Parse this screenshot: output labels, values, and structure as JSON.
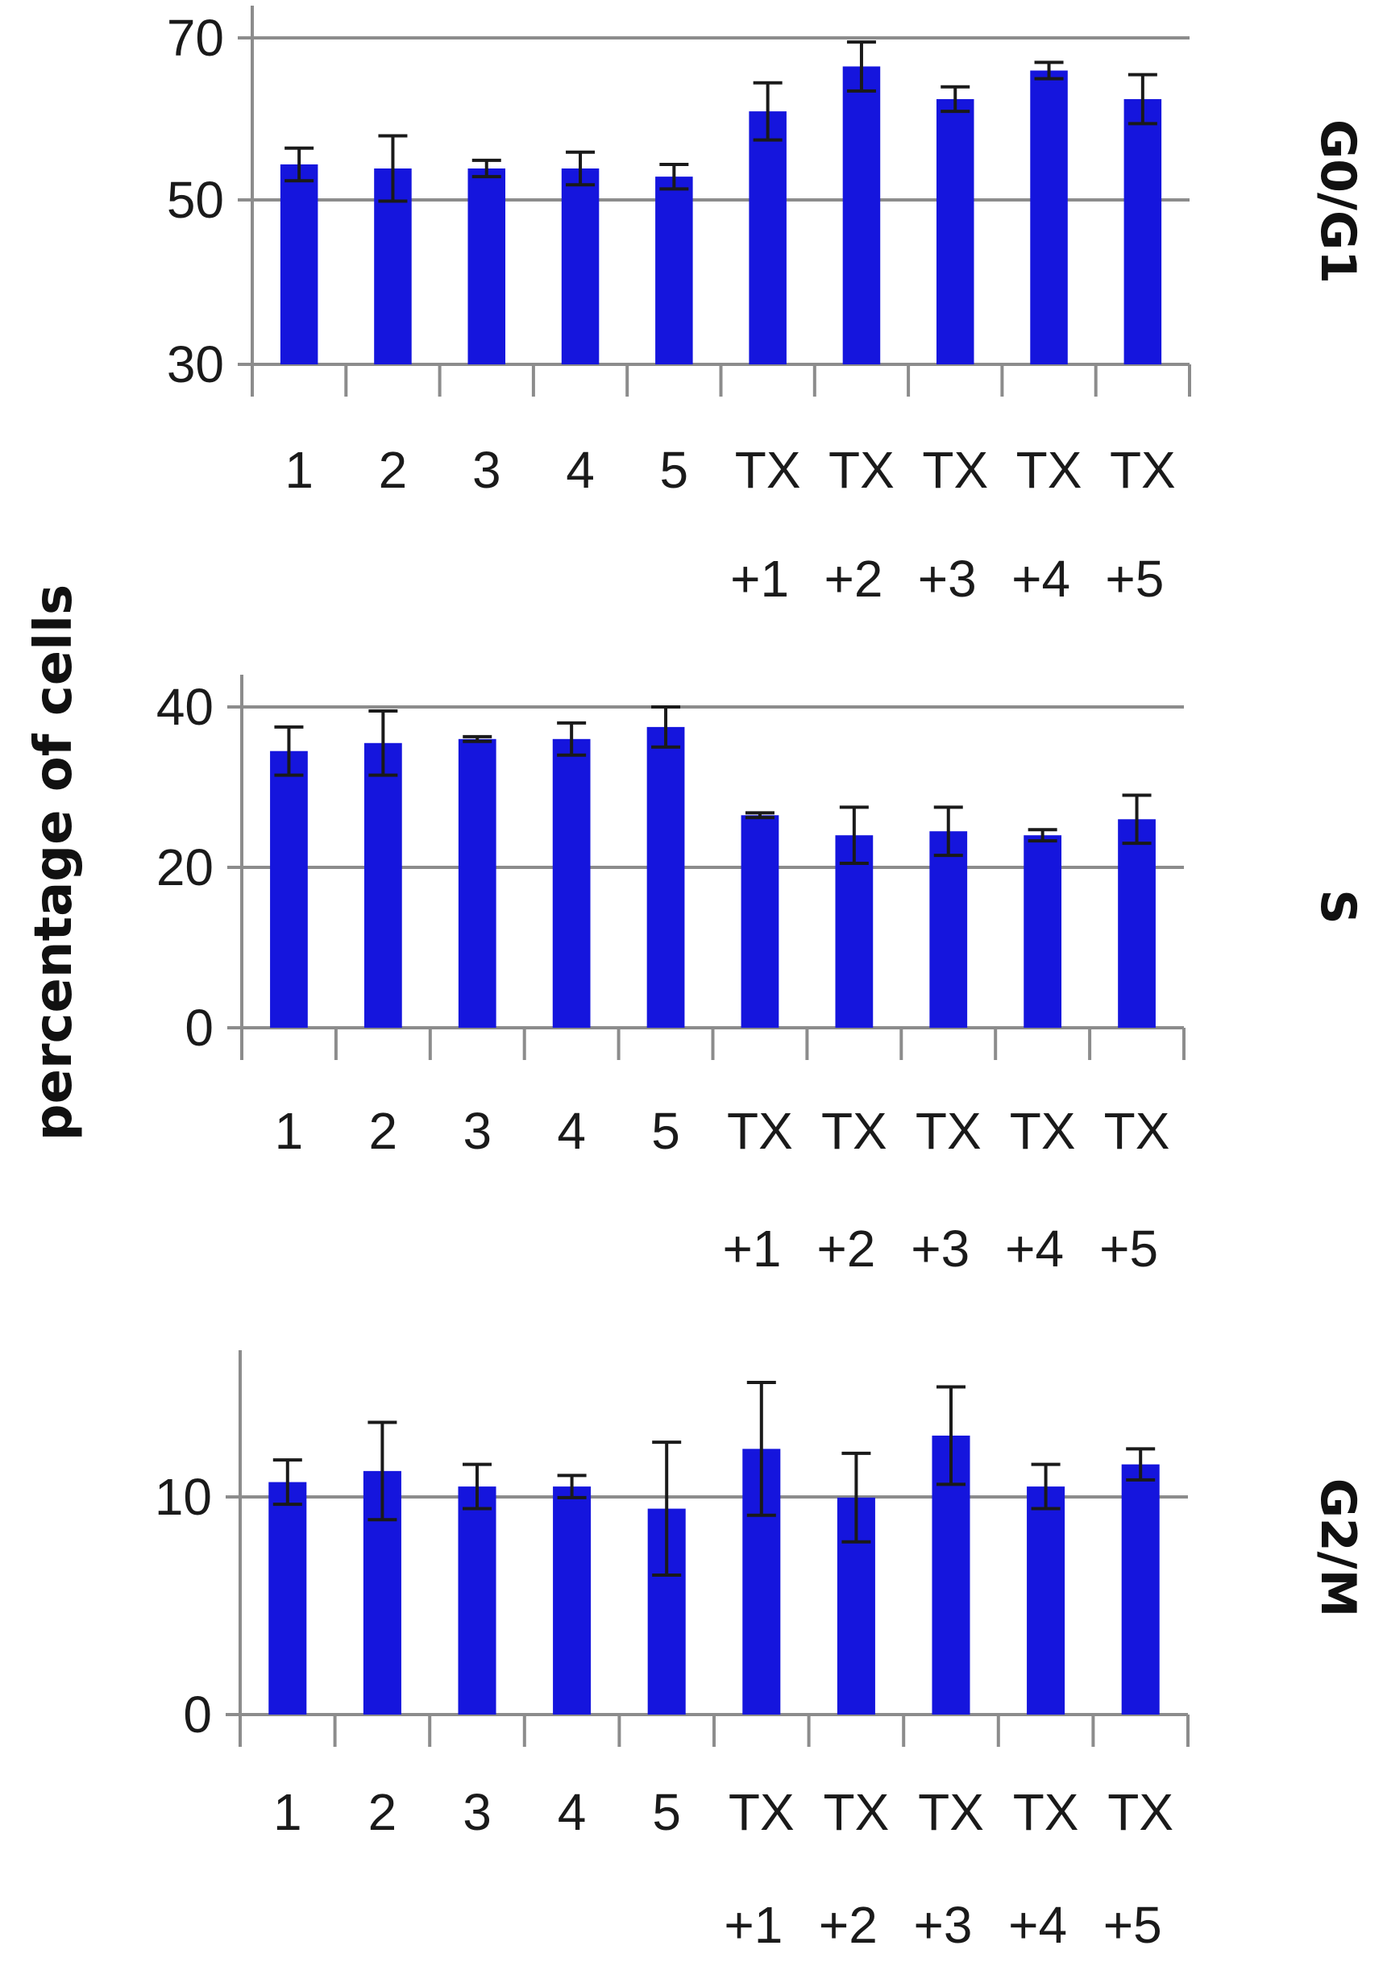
{
  "figure": {
    "ylabel": "percentage of cells",
    "bar_color": "#1515dd",
    "grid_color": "#8c8c8c",
    "axis_color": "#8c8c8c",
    "errorbar_color": "#1a1a1a"
  },
  "chart_data": [
    {
      "type": "bar",
      "panel_label": "G0/G1",
      "categories": [
        [
          "1",
          ""
        ],
        [
          "2",
          ""
        ],
        [
          "3",
          ""
        ],
        [
          "4",
          ""
        ],
        [
          "5",
          ""
        ],
        [
          "TX",
          "+1"
        ],
        [
          "TX",
          "+2"
        ],
        [
          "TX",
          "+3"
        ],
        [
          "TX",
          "+4"
        ],
        [
          "TX",
          "+5"
        ]
      ],
      "values": [
        54.5,
        54,
        54,
        54,
        53,
        61,
        66.5,
        62.5,
        66,
        62.5
      ],
      "errors": [
        2,
        4,
        1,
        2,
        1.5,
        3.5,
        3,
        1.5,
        1,
        3
      ],
      "ylim": [
        30,
        70
      ],
      "yticks": [
        "30",
        "50",
        "70"
      ],
      "grid": true
    },
    {
      "type": "bar",
      "panel_label": "S",
      "categories": [
        [
          "1",
          ""
        ],
        [
          "2",
          ""
        ],
        [
          "3",
          ""
        ],
        [
          "4",
          ""
        ],
        [
          "5",
          ""
        ],
        [
          "TX",
          "+1"
        ],
        [
          "TX",
          "+2"
        ],
        [
          "TX",
          "+3"
        ],
        [
          "TX",
          "+4"
        ],
        [
          "TX",
          "+5"
        ]
      ],
      "values": [
        34.5,
        35.5,
        36,
        36,
        37.5,
        26.5,
        24,
        24.5,
        24,
        26
      ],
      "errors": [
        3,
        4,
        0.3,
        2,
        2.5,
        0.3,
        3.5,
        3,
        0.7,
        3
      ],
      "ylim": [
        0,
        40
      ],
      "yticks": [
        "0",
        "20",
        "40"
      ],
      "grid": true
    },
    {
      "type": "bar",
      "panel_label": "G2/M",
      "categories": [
        [
          "1",
          ""
        ],
        [
          "2",
          ""
        ],
        [
          "3",
          ""
        ],
        [
          "4",
          ""
        ],
        [
          "5",
          ""
        ],
        [
          "TX",
          "+1"
        ],
        [
          "TX",
          "+2"
        ],
        [
          "TX",
          "+3"
        ],
        [
          "TX",
          "+4"
        ],
        [
          "TX",
          "+5"
        ]
      ],
      "values": [
        10.5,
        11,
        10.3,
        10.3,
        9.3,
        12,
        9.8,
        12.6,
        10.3,
        11.3
      ],
      "errors": [
        1,
        2.2,
        1,
        0.5,
        3,
        3,
        2,
        2.2,
        1,
        0.7
      ],
      "ylim": [
        0,
        15
      ],
      "yticks": [
        "0",
        "10"
      ],
      "grid": true
    }
  ]
}
